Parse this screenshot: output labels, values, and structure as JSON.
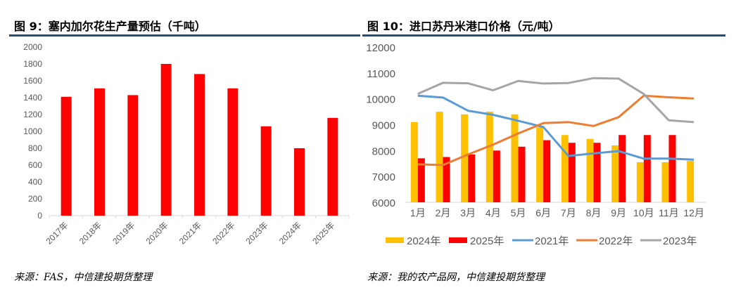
{
  "left": {
    "title": "图 9：塞内加尔花生产量预估（千吨）",
    "source": "来源：FAS，中信建投期货整理"
  },
  "right": {
    "title": "图 10：进口苏丹米港口价格（元/吨）",
    "source": "来源：我的农产品网，中信建投期货整理"
  },
  "chart_data": [
    {
      "type": "bar",
      "categories": [
        "2017年",
        "2018年",
        "2019年",
        "2020年",
        "2021年",
        "2022年",
        "2023年",
        "2024年",
        "2025年"
      ],
      "values": [
        1410,
        1510,
        1430,
        1800,
        1680,
        1510,
        1060,
        800,
        1160
      ],
      "ylim": [
        0,
        2000
      ],
      "yticks": [
        0,
        200,
        400,
        600,
        800,
        1000,
        1200,
        1400,
        1600,
        1800,
        2000
      ],
      "color": "#ff0000",
      "grid": false
    },
    {
      "type": "bar+line",
      "categories": [
        "1月",
        "2月",
        "3月",
        "4月",
        "5月",
        "6月",
        "7月",
        "8月",
        "9月",
        "10月",
        "11月",
        "12月"
      ],
      "ylim": [
        6000,
        12000
      ],
      "yticks": [
        6000,
        7000,
        8000,
        9000,
        10000,
        11000,
        12000
      ],
      "grid": false,
      "legend": "bottom",
      "series": [
        {
          "name": "2024年",
          "kind": "bar",
          "color": "#ffc000",
          "values": [
            9100,
            9500,
            9400,
            9500,
            9400,
            8900,
            8600,
            8450,
            8200,
            7550,
            7550,
            7600
          ]
        },
        {
          "name": "2025年",
          "kind": "bar",
          "color": "#ff0000",
          "values": [
            7700,
            7750,
            7850,
            8000,
            8150,
            8400,
            8300,
            8300,
            8600,
            8600,
            8600,
            null
          ]
        },
        {
          "name": "2021年",
          "kind": "line",
          "color": "#5b9bd5",
          "values": [
            10120,
            10050,
            9540,
            9380,
            9150,
            8910,
            7790,
            7890,
            7980,
            7690,
            7690,
            7650
          ]
        },
        {
          "name": "2022年",
          "kind": "line",
          "color": "#ed7d31",
          "values": [
            7470,
            7440,
            7850,
            8230,
            8660,
            9060,
            9100,
            8950,
            9290,
            10120,
            10060,
            10010
          ]
        },
        {
          "name": "2023年",
          "kind": "line",
          "color": "#a5a5a5",
          "values": [
            10190,
            10620,
            10600,
            10330,
            10690,
            10590,
            10610,
            10800,
            10780,
            10190,
            9170,
            9100
          ]
        }
      ]
    }
  ]
}
